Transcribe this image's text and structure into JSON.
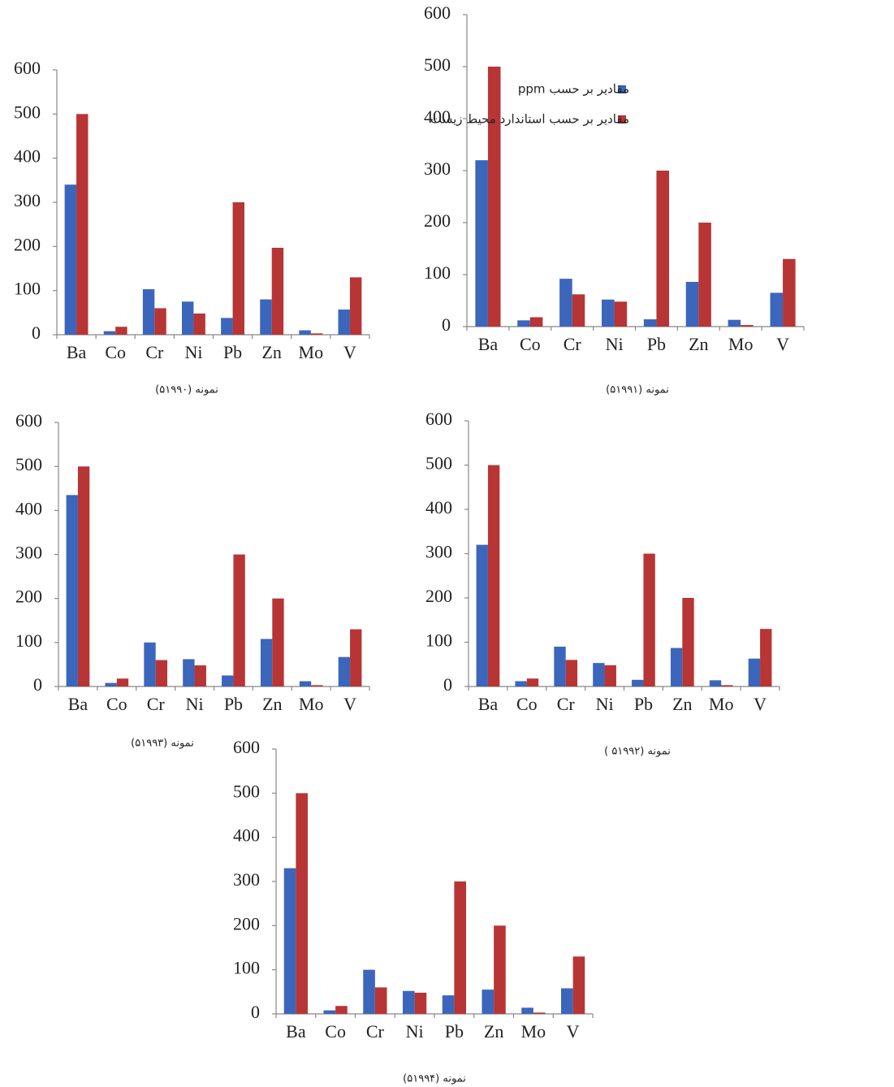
{
  "chart_data": [
    {
      "type": "bar",
      "title": "نمونه (۵۱۹۹۰)",
      "categories": [
        "Ba",
        "Co",
        "Cr",
        "Ni",
        "Pb",
        "Zn",
        "Mo",
        "V"
      ],
      "series": [
        {
          "color": "#3b66bb",
          "values": [
            340,
            8,
            103,
            75,
            38,
            80,
            10,
            57
          ]
        },
        {
          "color": "#b83535",
          "values": [
            500,
            18,
            60,
            48,
            300,
            197,
            3,
            130
          ]
        }
      ],
      "ylim": [
        0,
        600
      ],
      "yticks": [
        0,
        100,
        200,
        300,
        400,
        500,
        600
      ]
    },
    {
      "type": "bar",
      "title": "نمونه (۵۱۹۹۱)",
      "categories": [
        "Ba",
        "Co",
        "Cr",
        "Ni",
        "Pb",
        "Zn",
        "Mo",
        "V"
      ],
      "series": [
        {
          "name": "مقادیر بر حسب ppm",
          "color": "#3b66bb",
          "values": [
            320,
            12,
            92,
            52,
            14,
            86,
            13,
            65
          ]
        },
        {
          "name": "مقادیر بر حسب استاندارد محیط زیست",
          "color": "#b83535",
          "values": [
            500,
            18,
            62,
            48,
            300,
            200,
            3,
            130
          ]
        }
      ],
      "ylim": [
        0,
        600
      ],
      "yticks": [
        0,
        100,
        200,
        300,
        400,
        500,
        600
      ],
      "legend": "upper right"
    },
    {
      "type": "bar",
      "title": "نمونه (۵۱۹۹۳)",
      "categories": [
        "Ba",
        "Co",
        "Cr",
        "Ni",
        "Pb",
        "Zn",
        "Mo",
        "V"
      ],
      "series": [
        {
          "color": "#3b66bb",
          "values": [
            435,
            8,
            100,
            62,
            25,
            108,
            12,
            67
          ]
        },
        {
          "color": "#b83535",
          "values": [
            500,
            18,
            60,
            48,
            300,
            200,
            3,
            130
          ]
        }
      ],
      "ylim": [
        0,
        600
      ],
      "yticks": [
        0,
        100,
        200,
        300,
        400,
        500,
        600
      ]
    },
    {
      "type": "bar",
      "title": "نمونه (۵۱۹۹۲ )",
      "categories": [
        "Ba",
        "Co",
        "Cr",
        "Ni",
        "Pb",
        "Zn",
        "Mo",
        "V"
      ],
      "series": [
        {
          "color": "#3b66bb",
          "values": [
            320,
            12,
            90,
            53,
            15,
            87,
            14,
            63
          ]
        },
        {
          "color": "#b83535",
          "values": [
            500,
            18,
            60,
            48,
            300,
            200,
            3,
            130
          ]
        }
      ],
      "ylim": [
        0,
        600
      ],
      "yticks": [
        0,
        100,
        200,
        300,
        400,
        500,
        600
      ]
    },
    {
      "type": "bar",
      "title": "نمونه (۵۱۹۹۴)",
      "categories": [
        "Ba",
        "Co",
        "Cr",
        "Ni",
        "Pb",
        "Zn",
        "Mo",
        "V"
      ],
      "series": [
        {
          "color": "#3b66bb",
          "values": [
            330,
            8,
            100,
            52,
            42,
            55,
            14,
            58
          ]
        },
        {
          "color": "#b83535",
          "values": [
            500,
            18,
            60,
            48,
            300,
            200,
            3,
            130
          ]
        }
      ],
      "ylim": [
        0,
        600
      ],
      "yticks": [
        0,
        100,
        200,
        300,
        400,
        500,
        600
      ]
    }
  ]
}
